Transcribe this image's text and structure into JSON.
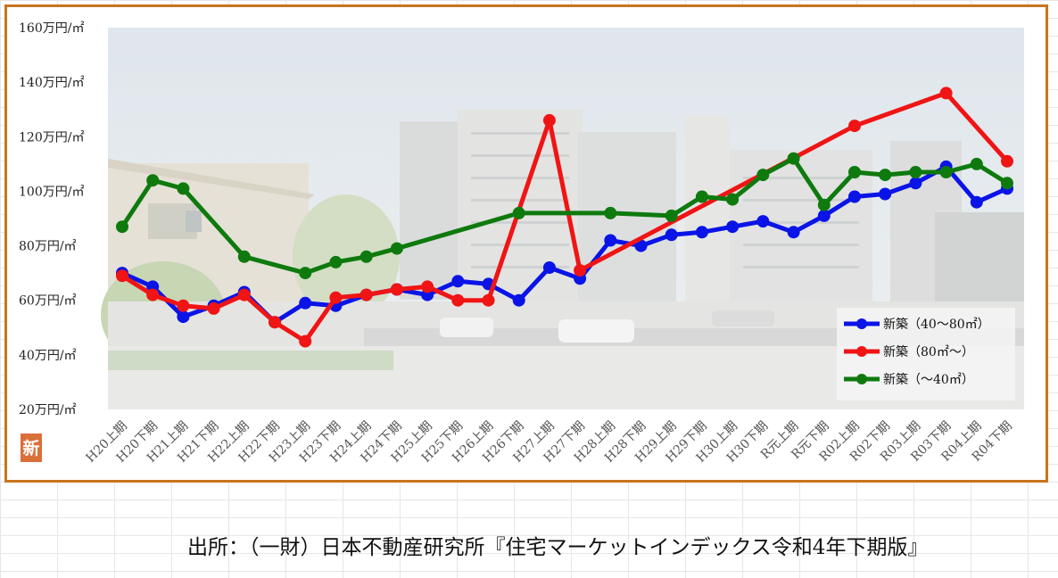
{
  "badge": "新",
  "source_note": "出所：（一財）日本不動産研究所『住宅マーケットインデックス令和4年下期版』",
  "chart_data": {
    "type": "line",
    "title": "",
    "xlabel": "",
    "ylabel": "",
    "ylim": [
      20,
      160
    ],
    "y_ticks": [
      {
        "value": 20,
        "label": "20万円/㎡"
      },
      {
        "value": 40,
        "label": "40万円/㎡"
      },
      {
        "value": 60,
        "label": "60万円/㎡"
      },
      {
        "value": 80,
        "label": "80万円/㎡"
      },
      {
        "value": 100,
        "label": "100万円/㎡"
      },
      {
        "value": 120,
        "label": "120万円/㎡"
      },
      {
        "value": 140,
        "label": "140万円/㎡"
      },
      {
        "value": 160,
        "label": "160万円/㎡"
      }
    ],
    "grid": false,
    "legend_position": "bottom-right",
    "categories": [
      "H20上期",
      "H20下期",
      "H21上期",
      "H21下期",
      "H22上期",
      "H22下期",
      "H23上期",
      "H23下期",
      "H24上期",
      "H24下期",
      "H25上期",
      "H25下期",
      "H26上期",
      "H26下期",
      "H27上期",
      "H27下期",
      "H28上期",
      "H28下期",
      "H29上期",
      "H29下期",
      "H30上期",
      "H30下期",
      "R元上期",
      "R元下期",
      "R02上期",
      "R02下期",
      "R03上期",
      "R03下期",
      "R04上期",
      "R04下期"
    ],
    "series": [
      {
        "name": "新築（40～80㎡）",
        "color": "#0a14e6",
        "values": [
          70,
          65,
          54,
          58,
          63,
          52,
          59,
          58,
          62,
          64,
          62,
          67,
          66,
          60,
          72,
          68,
          82,
          80,
          84,
          85,
          87,
          89,
          85,
          91,
          98,
          99,
          103,
          109,
          96,
          101
        ]
      },
      {
        "name": "新築（80㎡～）",
        "color": "#f01414",
        "values": [
          69,
          62,
          58,
          57,
          62,
          52,
          45,
          61,
          62,
          64,
          65,
          60,
          60,
          null,
          126,
          71,
          null,
          null,
          null,
          null,
          null,
          null,
          null,
          null,
          124,
          null,
          null,
          136,
          null,
          111
        ]
      },
      {
        "name": "新築（～40㎡）",
        "color": "#0e7a0e",
        "values": [
          87,
          104,
          101,
          null,
          76,
          null,
          70,
          74,
          76,
          79,
          null,
          null,
          null,
          92,
          null,
          null,
          92,
          null,
          91,
          98,
          97,
          106,
          112,
          95,
          107,
          106,
          107,
          107,
          110,
          103
        ]
      }
    ]
  }
}
